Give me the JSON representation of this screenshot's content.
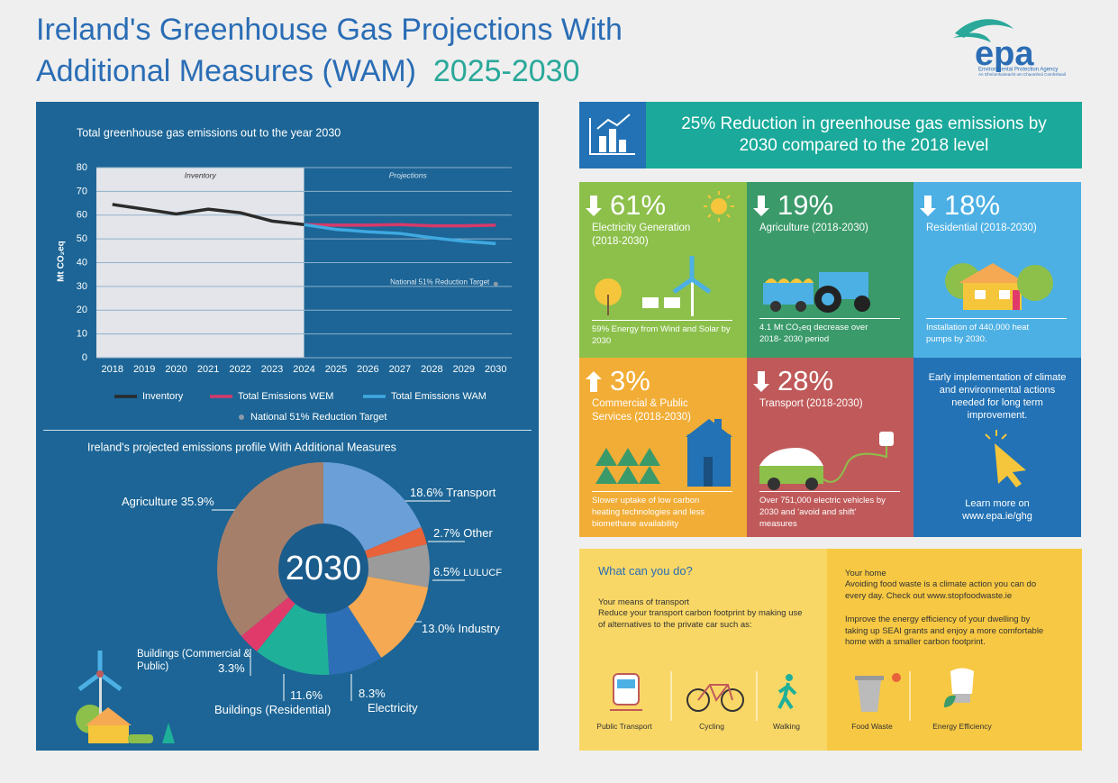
{
  "header": {
    "title": "Ireland's Greenhouse Gas Projections With Additional Measures (WAM)",
    "years": "2025-2030",
    "logo": "epa",
    "agency": "Environmental Protection Agency",
    "agency_irish": "An Ghníomhaireacht um Chaomhnú Comhshaoil"
  },
  "chart_data": [
    {
      "type": "line",
      "title": "Total greenhouse gas emissions out to the year 2030",
      "ylabel": "Mt CO₂eq",
      "annotations": [
        "Inventory",
        "Projections"
      ],
      "x": [
        2018,
        2019,
        2020,
        2021,
        2022,
        2023,
        2024,
        2025,
        2026,
        2027,
        2028,
        2029,
        2030
      ],
      "xticks": [
        2018,
        2019,
        2020,
        2021,
        2022,
        2023,
        2024,
        2025,
        2026,
        2027,
        2028,
        2029,
        2030
      ],
      "xlim": [
        2017.5,
        2030.5
      ],
      "ylim": [
        0,
        80
      ],
      "yticks": [
        0,
        10,
        20,
        30,
        40,
        50,
        60,
        70,
        80
      ],
      "grid": true,
      "series": [
        {
          "name": "Inventory",
          "color": "#2b2b2b",
          "values": [
            64.5,
            62.5,
            60.5,
            62.5,
            61,
            57.5,
            56,
            null,
            null,
            null,
            null,
            null,
            null
          ]
        },
        {
          "name": "Total Emissions WEM",
          "color": "#d63a6a",
          "values": [
            null,
            null,
            null,
            null,
            null,
            null,
            56,
            55.8,
            55.8,
            56,
            55.5,
            55.5,
            55.8
          ]
        },
        {
          "name": "Total Emissions WAM",
          "color": "#3fa9e0",
          "values": [
            null,
            null,
            null,
            null,
            null,
            null,
            56,
            54,
            53,
            52.3,
            50.5,
            49,
            48
          ]
        }
      ],
      "target": {
        "name": "National 51% Reduction Target",
        "x": 2030,
        "value": 31,
        "color": "#8a9aa8"
      }
    },
    {
      "type": "pie",
      "title": "Ireland's projected emissions profile With Additional Measures",
      "center_label": "2030",
      "categories": [
        "Transport",
        "Other",
        "LULUCF",
        "Industry",
        "Electricity",
        "Buildings (Residential)",
        "Buildings (Commercial & Public)",
        "Agriculture"
      ],
      "values": [
        18.6,
        2.7,
        6.5,
        13.0,
        8.3,
        11.6,
        3.3,
        35.9
      ],
      "value_labels": [
        "18.6%",
        "2.7%",
        "6.5%",
        "13.0%",
        "8.3%",
        "11.6%",
        "3.3%",
        "35.9%"
      ],
      "colors": [
        "#6a9fd8",
        "#e8623a",
        "#9b9b9b",
        "#f5a952",
        "#2d6fb6",
        "#1fb09a",
        "#e03a6a",
        "#a67f6a"
      ]
    }
  ],
  "banner": "25% Reduction in greenhouse gas emissions by 2030 compared to the 2018 level",
  "tiles": [
    {
      "percent": "61%",
      "label": "Electricity Generation (2018-2030)",
      "caption": "59% Energy from Wind and Solar by 2030"
    },
    {
      "percent": "19%",
      "label": "Agriculture (2018-2030)",
      "caption": "4.1 Mt CO₂eq decrease over 2018- 2030 period"
    },
    {
      "percent": "18%",
      "label": "Residential (2018-2030)",
      "caption": "Installation of 440,000 heat pumps by 2030."
    },
    {
      "percent": "3%",
      "label": "Commercial & Public Services (2018-2030)",
      "caption": "Slower uptake of low carbon heating technologies and less biomethane availability"
    },
    {
      "percent": "28%",
      "label": "Transport (2018-2030)",
      "caption": "Over 751,000 electric vehicles by 2030 and 'avoid and shift' measures"
    }
  ],
  "info": {
    "text": "Early implementation of climate and environmental actions needed for long term improvement.",
    "learn": "Learn more on www.epa.ie/ghg"
  },
  "actions": {
    "title": "What can you do?",
    "transport_heading": "Your means of transport",
    "transport_text": "Reduce your transport carbon footprint by making use of alternatives to the private car such as:",
    "home_heading": "Your home",
    "home_text_1": "Avoiding food waste is a climate action you can do every day. Check out www.stopfoodwaste.ie",
    "home_text_2": "Improve the energy efficiency of your dwelling by taking up SEAI grants and enjoy a more comfortable home with a smaller carbon footprint.",
    "icons": [
      "Public Transport",
      "Cycling",
      "Walking",
      "Food Waste",
      "Energy Efficiency"
    ]
  }
}
